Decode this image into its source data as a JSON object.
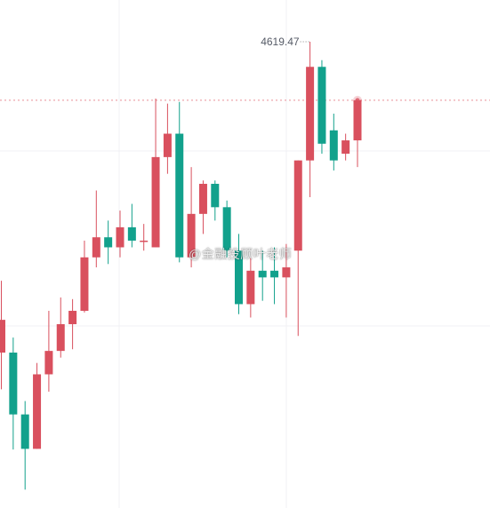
{
  "chart_data": {
    "type": "candlestick",
    "title": "",
    "xlabel": "",
    "ylabel": "",
    "grid": true,
    "colors": {
      "up": "#d9505e",
      "down": "#12a18c",
      "price_line": "#e98f98",
      "wick_dot_line": "#888888"
    },
    "max_label": "4619.47",
    "current_price": 4602.0,
    "ylim": [
      4480,
      4632
    ],
    "candles": [
      {
        "o": 4526.5,
        "h": 4548.0,
        "l": 4515.5,
        "c": 4536.3
      },
      {
        "o": 4526.5,
        "h": 4531.0,
        "l": 4497.5,
        "c": 4508.0
      },
      {
        "o": 4508.0,
        "h": 4512.0,
        "l": 4485.5,
        "c": 4497.7
      },
      {
        "o": 4497.7,
        "h": 4523.4,
        "l": 4497.7,
        "c": 4520.0
      },
      {
        "o": 4520.0,
        "h": 4539.0,
        "l": 4514.8,
        "c": 4527.0
      },
      {
        "o": 4527.0,
        "h": 4543.0,
        "l": 4525.0,
        "c": 4535.0
      },
      {
        "o": 4535.0,
        "h": 4542.5,
        "l": 4527.5,
        "c": 4539.0
      },
      {
        "o": 4539.0,
        "h": 4560.0,
        "l": 4538.5,
        "c": 4555.0
      },
      {
        "o": 4555.0,
        "h": 4575.0,
        "l": 4552.0,
        "c": 4561.0
      },
      {
        "o": 4561.0,
        "h": 4566.0,
        "l": 4553.0,
        "c": 4558.0
      },
      {
        "o": 4558.0,
        "h": 4569.0,
        "l": 4555.0,
        "c": 4564.0
      },
      {
        "o": 4564.0,
        "h": 4571.0,
        "l": 4558.0,
        "c": 4560.0
      },
      {
        "o": 4560.0,
        "h": 4565.0,
        "l": 4557.0,
        "c": 4560.0
      },
      {
        "o": 4558.0,
        "h": 4602.5,
        "l": 4558.0,
        "c": 4585.0
      },
      {
        "o": 4585.0,
        "h": 4601.0,
        "l": 4580.0,
        "c": 4592.0
      },
      {
        "o": 4592.0,
        "h": 4601.5,
        "l": 4553.5,
        "c": 4555.0
      },
      {
        "o": 4555.0,
        "h": 4582.0,
        "l": 4552.0,
        "c": 4568.0
      },
      {
        "o": 4568.0,
        "h": 4578.0,
        "l": 4562.0,
        "c": 4577.0
      },
      {
        "o": 4577.0,
        "h": 4578.0,
        "l": 4566.0,
        "c": 4570.0
      },
      {
        "o": 4570.0,
        "h": 4572.0,
        "l": 4555.0,
        "c": 4557.0
      },
      {
        "o": 4557.0,
        "h": 4562.0,
        "l": 4538.0,
        "c": 4541.0
      },
      {
        "o": 4541.0,
        "h": 4555.0,
        "l": 4537.0,
        "c": 4551.0
      },
      {
        "o": 4551.0,
        "h": 4557.0,
        "l": 4542.0,
        "c": 4549.0
      },
      {
        "o": 4551.0,
        "h": 4558.0,
        "l": 4541.0,
        "c": 4549.0
      },
      {
        "o": 4549.0,
        "h": 4559.0,
        "l": 4537.0,
        "c": 4552.0
      },
      {
        "o": 4557.0,
        "h": 4584.0,
        "l": 4531.5,
        "c": 4584.0
      },
      {
        "o": 4584.0,
        "h": 4619.5,
        "l": 4573.0,
        "c": 4612.0
      },
      {
        "o": 4612.0,
        "h": 4614.0,
        "l": 4586.0,
        "c": 4589.0
      },
      {
        "o": 4593.0,
        "h": 4598.0,
        "l": 4581.0,
        "c": 4584.0
      },
      {
        "o": 4586.0,
        "h": 4592.0,
        "l": 4584.0,
        "c": 4590.0
      },
      {
        "o": 4590.0,
        "h": 4602.0,
        "l": 4582.0,
        "c": 4602.0
      }
    ]
  },
  "watermark": "@金融投顾叶老师"
}
